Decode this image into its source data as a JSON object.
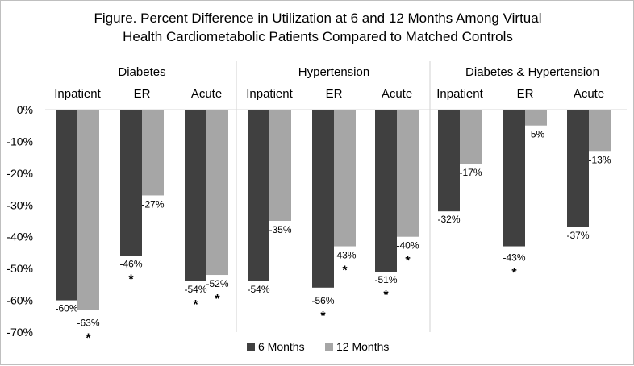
{
  "chart_data": {
    "type": "bar",
    "title_lines": [
      "Figure. Percent Difference in Utilization at 6 and 12 Months Among Virtual",
      "Health Cardiometabolic Patients Compared to Matched Controls"
    ],
    "groups": [
      {
        "name": "Diabetes",
        "categories": [
          "Inpatient",
          "ER",
          "Acute"
        ]
      },
      {
        "name": "Hypertension",
        "categories": [
          "Inpatient",
          "ER",
          "Acute"
        ]
      },
      {
        "name": "Diabetes & Hypertension",
        "categories": [
          "Inpatient",
          "ER",
          "Acute"
        ]
      }
    ],
    "series": [
      {
        "name": "6 Months",
        "color": "#404040",
        "values": [
          -60,
          -46,
          -54,
          -54,
          -56,
          -51,
          -32,
          -43,
          -37
        ],
        "labels": [
          "-60%",
          "-46%",
          "-54%",
          "-54%",
          "-56%",
          "-51%",
          "-32%",
          "-43%",
          "-37%"
        ],
        "significant": [
          false,
          true,
          true,
          false,
          true,
          true,
          false,
          true,
          false
        ]
      },
      {
        "name": "12 Months",
        "color": "#a6a6a6",
        "values": [
          -63,
          -27,
          -52,
          -35,
          -43,
          -40,
          -17,
          -5,
          -13
        ],
        "labels": [
          "-63%",
          "-27%",
          "-52%",
          "-35%",
          "-43%",
          "-40%",
          "-17%",
          "-5%",
          "-13%"
        ],
        "significant": [
          true,
          false,
          true,
          false,
          true,
          true,
          false,
          false,
          false
        ]
      }
    ],
    "significance_marker": "*",
    "y_ticks": [
      0,
      -10,
      -20,
      -30,
      -40,
      -50,
      -60,
      -70
    ],
    "y_tick_labels": [
      "0%",
      "-10%",
      "-20%",
      "-30%",
      "-40%",
      "-50%",
      "-60%",
      "-70%"
    ],
    "ylim": [
      -70,
      0
    ],
    "legend_position": "bottom"
  }
}
